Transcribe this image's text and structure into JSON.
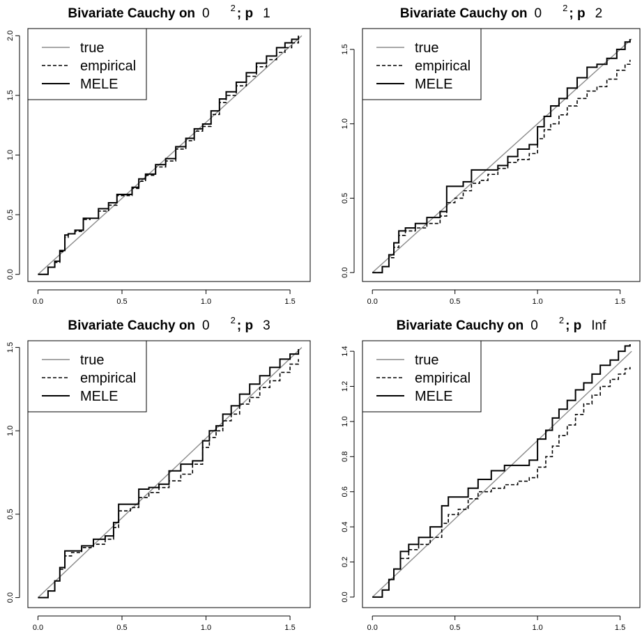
{
  "chart_data": [
    {
      "type": "line",
      "title_main": "Bivariate Cauchy on",
      "title_sym": "0",
      "title_sup": "2",
      "title_sep": "; p",
      "title_p": "1",
      "xlabel": "",
      "ylabel": "",
      "xlim": [
        -0.06,
        1.62
      ],
      "ylim": [
        -0.06,
        2.06
      ],
      "xticks": [
        0.0,
        0.5,
        1.0,
        1.5
      ],
      "xtick_labels": [
        "0.0",
        "0.5",
        "1.0",
        "1.5"
      ],
      "yticks": [
        0.0,
        0.5,
        1.0,
        1.5,
        2.0
      ],
      "ytick_labels": [
        "0.0",
        "0.5",
        "1.0",
        "1.5",
        "2.0"
      ],
      "grid": false,
      "legend": {
        "position": "top-left",
        "entries": [
          "true",
          "empirical",
          "MELE"
        ]
      },
      "series": [
        {
          "name": "true",
          "style": "solid-thin",
          "x": [
            0.0,
            1.57
          ],
          "y": [
            0.0,
            2.0
          ]
        },
        {
          "name": "empirical",
          "style": "dashed",
          "x": [
            0.0,
            0.06,
            0.1,
            0.13,
            0.16,
            0.18,
            0.22,
            0.27,
            0.31,
            0.36,
            0.42,
            0.47,
            0.52,
            0.56,
            0.6,
            0.64,
            0.7,
            0.76,
            0.82,
            0.88,
            0.93,
            0.98,
            1.03,
            1.08,
            1.12,
            1.18,
            1.24,
            1.3,
            1.36,
            1.42,
            1.47,
            1.51,
            1.55
          ],
          "y": [
            0.0,
            0.06,
            0.1,
            0.19,
            0.31,
            0.34,
            0.36,
            0.46,
            0.47,
            0.53,
            0.58,
            0.66,
            0.66,
            0.72,
            0.78,
            0.83,
            0.9,
            0.95,
            1.05,
            1.12,
            1.2,
            1.24,
            1.34,
            1.44,
            1.5,
            1.58,
            1.66,
            1.74,
            1.8,
            1.86,
            1.9,
            1.94,
            1.97
          ]
        },
        {
          "name": "MELE",
          "style": "solid-thick",
          "x": [
            0.0,
            0.06,
            0.1,
            0.13,
            0.16,
            0.18,
            0.22,
            0.27,
            0.31,
            0.36,
            0.42,
            0.47,
            0.52,
            0.56,
            0.6,
            0.64,
            0.7,
            0.76,
            0.82,
            0.88,
            0.93,
            0.98,
            1.03,
            1.08,
            1.12,
            1.18,
            1.24,
            1.3,
            1.36,
            1.42,
            1.47,
            1.51,
            1.55
          ],
          "y": [
            0.0,
            0.06,
            0.11,
            0.2,
            0.33,
            0.34,
            0.37,
            0.47,
            0.47,
            0.55,
            0.6,
            0.67,
            0.67,
            0.73,
            0.8,
            0.84,
            0.92,
            0.97,
            1.07,
            1.14,
            1.22,
            1.26,
            1.37,
            1.47,
            1.53,
            1.61,
            1.69,
            1.77,
            1.83,
            1.9,
            1.94,
            1.97,
            2.0
          ]
        }
      ]
    },
    {
      "type": "line",
      "title_main": "Bivariate Cauchy on",
      "title_sym": "0",
      "title_sup": "2",
      "title_sep": "; p",
      "title_p": "2",
      "xlabel": "",
      "ylabel": "",
      "xlim": [
        -0.06,
        1.62
      ],
      "ylim": [
        -0.06,
        1.64
      ],
      "xticks": [
        0.0,
        0.5,
        1.0,
        1.5
      ],
      "xtick_labels": [
        "0.0",
        "0.5",
        "1.0",
        "1.5"
      ],
      "yticks": [
        0.0,
        0.5,
        1.0,
        1.5
      ],
      "ytick_labels": [
        "0.0",
        "0.5",
        "1.0",
        "1.5"
      ],
      "grid": false,
      "legend": {
        "position": "top-left",
        "entries": [
          "true",
          "empirical",
          "MELE"
        ]
      },
      "series": [
        {
          "name": "true",
          "style": "solid-thin",
          "x": [
            0.0,
            1.57
          ],
          "y": [
            0.0,
            1.57
          ]
        },
        {
          "name": "empirical",
          "style": "dashed",
          "x": [
            0.0,
            0.06,
            0.1,
            0.13,
            0.16,
            0.2,
            0.26,
            0.33,
            0.41,
            0.45,
            0.5,
            0.55,
            0.6,
            0.65,
            0.7,
            0.76,
            0.82,
            0.88,
            0.95,
            1.0,
            1.04,
            1.08,
            1.13,
            1.18,
            1.24,
            1.3,
            1.36,
            1.42,
            1.48,
            1.53,
            1.56
          ],
          "y": [
            0.0,
            0.04,
            0.1,
            0.17,
            0.25,
            0.28,
            0.3,
            0.33,
            0.38,
            0.47,
            0.5,
            0.55,
            0.6,
            0.62,
            0.66,
            0.7,
            0.74,
            0.76,
            0.8,
            0.9,
            0.96,
            1.0,
            1.06,
            1.12,
            1.17,
            1.22,
            1.25,
            1.3,
            1.36,
            1.4,
            1.43
          ]
        },
        {
          "name": "MELE",
          "style": "solid-thick",
          "x": [
            0.0,
            0.06,
            0.1,
            0.13,
            0.16,
            0.2,
            0.26,
            0.33,
            0.41,
            0.45,
            0.5,
            0.55,
            0.6,
            0.65,
            0.7,
            0.76,
            0.82,
            0.88,
            0.95,
            1.0,
            1.04,
            1.08,
            1.13,
            1.18,
            1.24,
            1.3,
            1.36,
            1.42,
            1.48,
            1.53,
            1.56
          ],
          "y": [
            0.0,
            0.04,
            0.12,
            0.2,
            0.28,
            0.3,
            0.33,
            0.37,
            0.41,
            0.58,
            0.58,
            0.61,
            0.69,
            0.69,
            0.69,
            0.72,
            0.78,
            0.83,
            0.86,
            0.98,
            1.05,
            1.12,
            1.17,
            1.24,
            1.31,
            1.38,
            1.4,
            1.44,
            1.5,
            1.55,
            1.57
          ]
        }
      ]
    },
    {
      "type": "line",
      "title_main": "Bivariate Cauchy on",
      "title_sym": "0",
      "title_sup": "2",
      "title_sep": "; p",
      "title_p": "3",
      "xlabel": "",
      "ylabel": "",
      "xlim": [
        -0.06,
        1.62
      ],
      "ylim": [
        -0.06,
        1.54
      ],
      "xticks": [
        0.0,
        0.5,
        1.0,
        1.5
      ],
      "xtick_labels": [
        "0.0",
        "0.5",
        "1.0",
        "1.5"
      ],
      "yticks": [
        0.0,
        0.5,
        1.0,
        1.5
      ],
      "ytick_labels": [
        "0.0",
        "0.5",
        "1.0",
        "1.5"
      ],
      "grid": false,
      "legend": {
        "position": "top-left",
        "entries": [
          "true",
          "empirical",
          "MELE"
        ]
      },
      "series": [
        {
          "name": "true",
          "style": "solid-thin",
          "x": [
            0.0,
            1.57
          ],
          "y": [
            0.0,
            1.5
          ]
        },
        {
          "name": "empirical",
          "style": "dashed",
          "x": [
            0.0,
            0.06,
            0.1,
            0.13,
            0.16,
            0.2,
            0.26,
            0.33,
            0.4,
            0.45,
            0.48,
            0.55,
            0.6,
            0.66,
            0.72,
            0.78,
            0.85,
            0.92,
            0.98,
            1.02,
            1.06,
            1.1,
            1.15,
            1.2,
            1.26,
            1.32,
            1.38,
            1.44,
            1.5,
            1.55
          ],
          "y": [
            0.0,
            0.04,
            0.1,
            0.17,
            0.25,
            0.27,
            0.3,
            0.32,
            0.35,
            0.42,
            0.52,
            0.54,
            0.6,
            0.63,
            0.66,
            0.7,
            0.74,
            0.8,
            0.9,
            0.96,
            1.0,
            1.06,
            1.1,
            1.16,
            1.2,
            1.26,
            1.3,
            1.35,
            1.4,
            1.43
          ]
        },
        {
          "name": "MELE",
          "style": "solid-thick",
          "x": [
            0.0,
            0.06,
            0.1,
            0.13,
            0.16,
            0.2,
            0.26,
            0.33,
            0.4,
            0.45,
            0.48,
            0.55,
            0.6,
            0.66,
            0.72,
            0.78,
            0.85,
            0.92,
            0.98,
            1.02,
            1.06,
            1.1,
            1.15,
            1.2,
            1.26,
            1.32,
            1.38,
            1.44,
            1.5,
            1.55
          ],
          "y": [
            0.0,
            0.04,
            0.1,
            0.18,
            0.28,
            0.28,
            0.31,
            0.35,
            0.37,
            0.45,
            0.56,
            0.56,
            0.65,
            0.66,
            0.68,
            0.76,
            0.8,
            0.82,
            0.94,
            1.0,
            1.03,
            1.1,
            1.15,
            1.22,
            1.28,
            1.33,
            1.38,
            1.43,
            1.46,
            1.49
          ]
        }
      ]
    },
    {
      "type": "line",
      "title_main": "Bivariate Cauchy on",
      "title_sym": "0",
      "title_sup": "2",
      "title_sep": "; p",
      "title_p": "Inf",
      "xlabel": "",
      "ylabel": "",
      "xlim": [
        -0.06,
        1.62
      ],
      "ylim": [
        -0.06,
        1.46
      ],
      "xticks": [
        0.0,
        0.5,
        1.0,
        1.5
      ],
      "xtick_labels": [
        "0.0",
        "0.5",
        "1.0",
        "1.5"
      ],
      "yticks": [
        0.0,
        0.2,
        0.4,
        0.6,
        0.8,
        1.0,
        1.2,
        1.4
      ],
      "ytick_labels": [
        "0.0",
        "0.2",
        "0.4",
        "0.6",
        "0.8",
        "1.0",
        "1.2",
        "1.4"
      ],
      "grid": false,
      "legend": {
        "position": "top-left",
        "entries": [
          "true",
          "empirical",
          "MELE"
        ]
      },
      "series": [
        {
          "name": "true",
          "style": "solid-thin",
          "x": [
            0.0,
            1.57
          ],
          "y": [
            0.0,
            1.4
          ]
        },
        {
          "name": "empirical",
          "style": "dashed",
          "x": [
            0.0,
            0.06,
            0.1,
            0.13,
            0.17,
            0.22,
            0.28,
            0.35,
            0.42,
            0.46,
            0.52,
            0.58,
            0.64,
            0.72,
            0.8,
            0.88,
            0.95,
            1.0,
            1.05,
            1.09,
            1.13,
            1.18,
            1.23,
            1.28,
            1.33,
            1.38,
            1.44,
            1.49,
            1.53,
            1.56
          ],
          "y": [
            0.0,
            0.04,
            0.1,
            0.16,
            0.22,
            0.27,
            0.3,
            0.34,
            0.42,
            0.47,
            0.5,
            0.56,
            0.6,
            0.62,
            0.64,
            0.66,
            0.68,
            0.74,
            0.8,
            0.86,
            0.92,
            0.98,
            1.04,
            1.1,
            1.15,
            1.2,
            1.24,
            1.27,
            1.3,
            1.31
          ]
        },
        {
          "name": "MELE",
          "style": "solid-thick",
          "x": [
            0.0,
            0.06,
            0.1,
            0.13,
            0.17,
            0.22,
            0.28,
            0.35,
            0.42,
            0.46,
            0.52,
            0.58,
            0.64,
            0.72,
            0.8,
            0.88,
            0.95,
            1.0,
            1.05,
            1.09,
            1.13,
            1.18,
            1.23,
            1.28,
            1.33,
            1.38,
            1.44,
            1.49,
            1.53,
            1.56
          ],
          "y": [
            0.0,
            0.04,
            0.1,
            0.16,
            0.26,
            0.3,
            0.34,
            0.4,
            0.52,
            0.57,
            0.57,
            0.62,
            0.67,
            0.72,
            0.75,
            0.75,
            0.78,
            0.9,
            0.95,
            1.02,
            1.07,
            1.12,
            1.18,
            1.22,
            1.27,
            1.32,
            1.35,
            1.4,
            1.43,
            1.44
          ]
        }
      ]
    }
  ]
}
